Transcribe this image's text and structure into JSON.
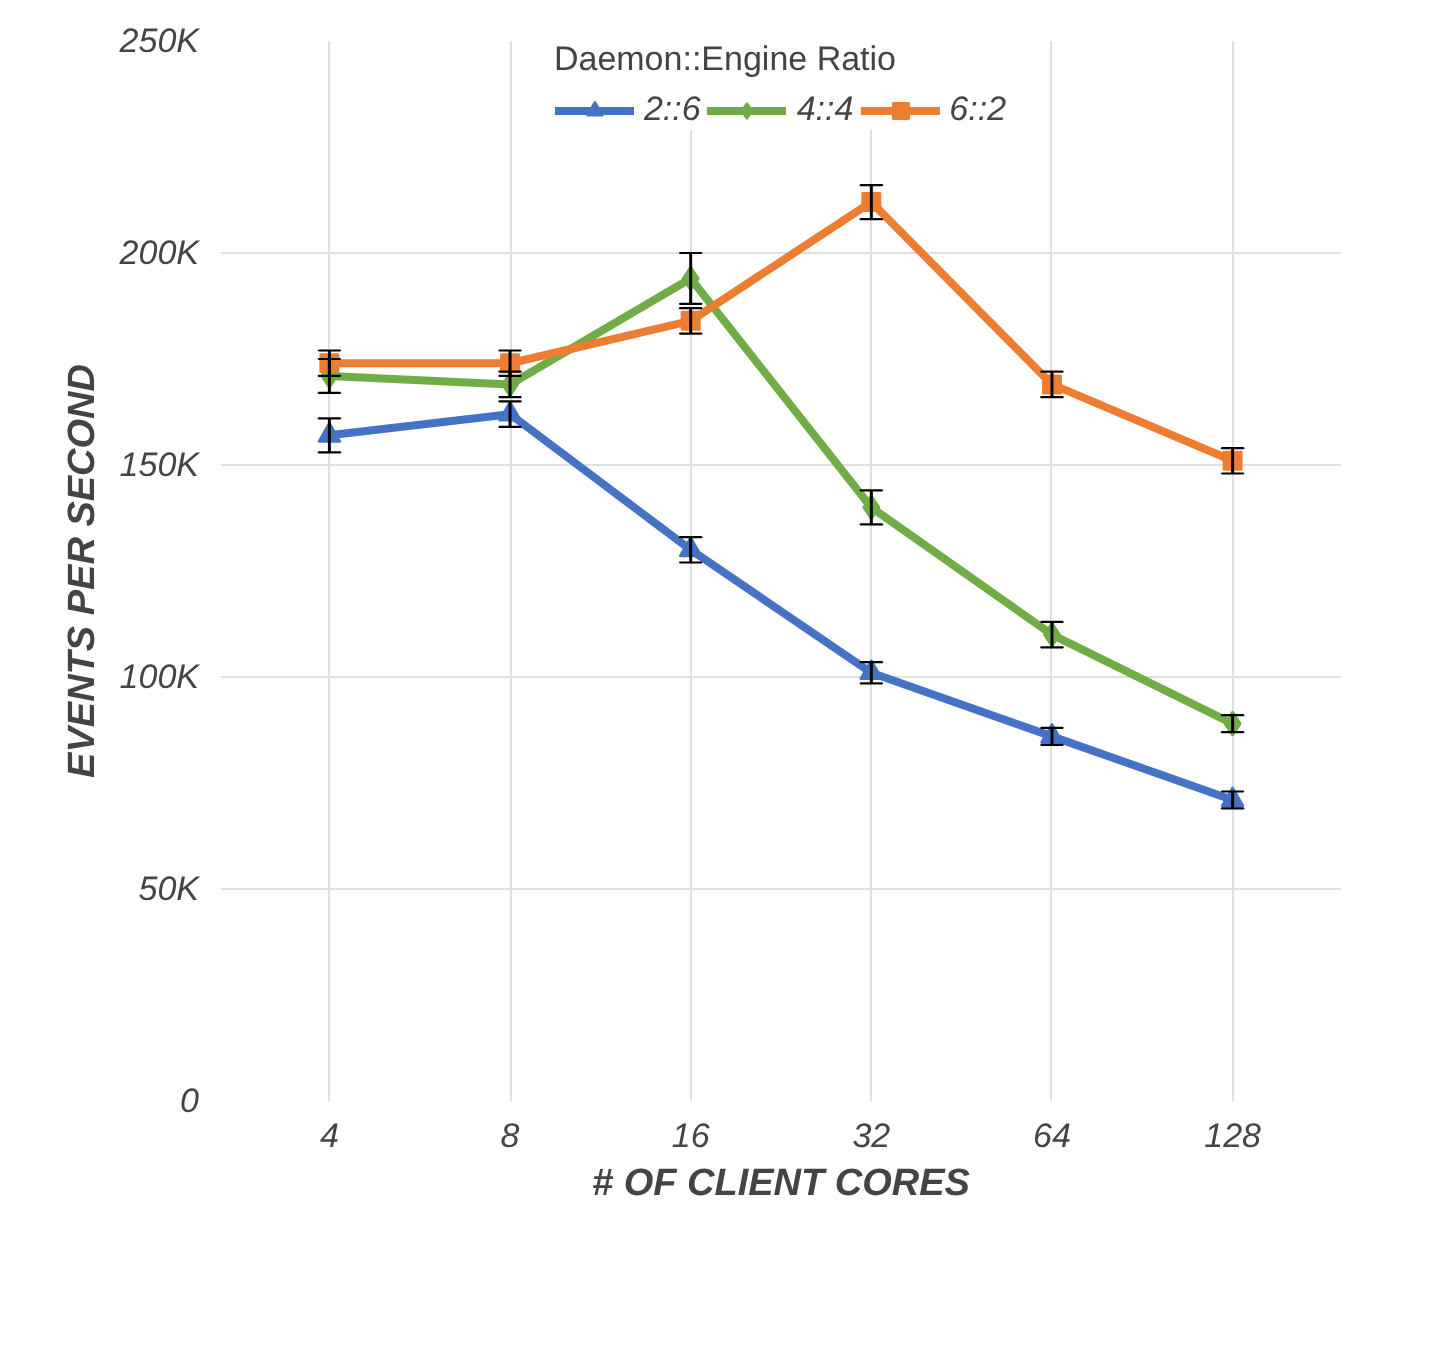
{
  "chart_data": {
    "type": "line",
    "xlabel": "# OF CLIENT CORES",
    "ylabel": "EVENTS PER SECOND",
    "legend_title": "Daemon::Engine Ratio",
    "categories": [
      "4",
      "8",
      "16",
      "32",
      "64",
      "128"
    ],
    "series": [
      {
        "name": "2::6",
        "color": "#4472c4",
        "marker": "triangle",
        "values": [
          157000,
          162000,
          130000,
          101000,
          86000,
          71000
        ],
        "errors": [
          4000,
          3000,
          3000,
          2500,
          2000,
          2000
        ]
      },
      {
        "name": "4::4",
        "color": "#70ad47",
        "marker": "diamond",
        "values": [
          171000,
          169000,
          194000,
          140000,
          110000,
          89000
        ],
        "errors": [
          4000,
          3000,
          6000,
          4000,
          3000,
          2000
        ]
      },
      {
        "name": "6::2",
        "color": "#ed7d31",
        "marker": "square",
        "values": [
          174000,
          174000,
          184000,
          212000,
          169000,
          151000
        ],
        "errors": [
          3000,
          3000,
          3000,
          4000,
          3000,
          3000
        ]
      }
    ],
    "ylim": [
      0,
      250000
    ],
    "yticks": [
      {
        "value": 0,
        "label": "0"
      },
      {
        "value": 50000,
        "label": "50K"
      },
      {
        "value": 100000,
        "label": "100K"
      },
      {
        "value": 150000,
        "label": "150K"
      },
      {
        "value": 200000,
        "label": "200K"
      },
      {
        "value": 250000,
        "label": "250K"
      }
    ],
    "grid": true,
    "legend": "top",
    "line_style": "solid"
  }
}
